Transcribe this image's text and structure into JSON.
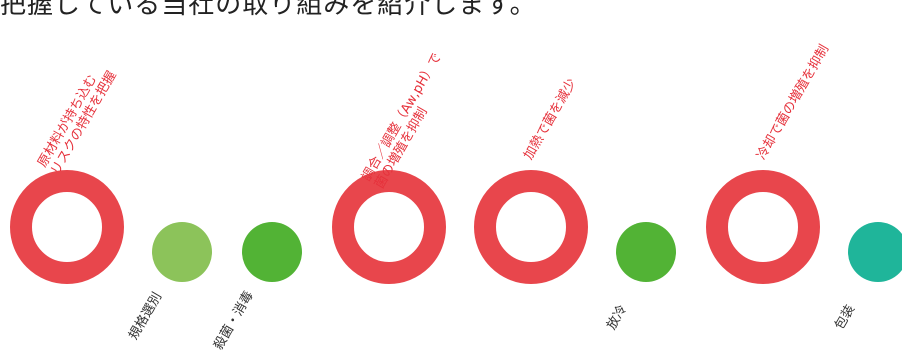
{
  "top_text": "把握している当社の取り組みを紹介します。",
  "colors": {
    "ring": "#e8464c",
    "red_text": "#e6323c",
    "dot_light_green": "#8cc35a",
    "dot_green": "#52b335",
    "dot_teal": "#1fb59a"
  },
  "steps": [
    {
      "kind": "ring",
      "label_lines": [
        "原材料が持ち込む",
        "リスクの特性を把握"
      ]
    },
    {
      "kind": "dot",
      "label": "規格選別"
    },
    {
      "kind": "dot",
      "label": "殺菌・消毒"
    },
    {
      "kind": "ring",
      "label_lines": [
        "調合／調整（Aw,pH）で",
        "菌の増殖を抑制"
      ]
    },
    {
      "kind": "ring",
      "label_lines": [
        "加熱で菌を減少"
      ]
    },
    {
      "kind": "dot",
      "label": "放冷"
    },
    {
      "kind": "ring",
      "label_lines": [
        "冷却で菌の増殖を抑制"
      ]
    },
    {
      "kind": "dot",
      "label": "包装"
    }
  ]
}
